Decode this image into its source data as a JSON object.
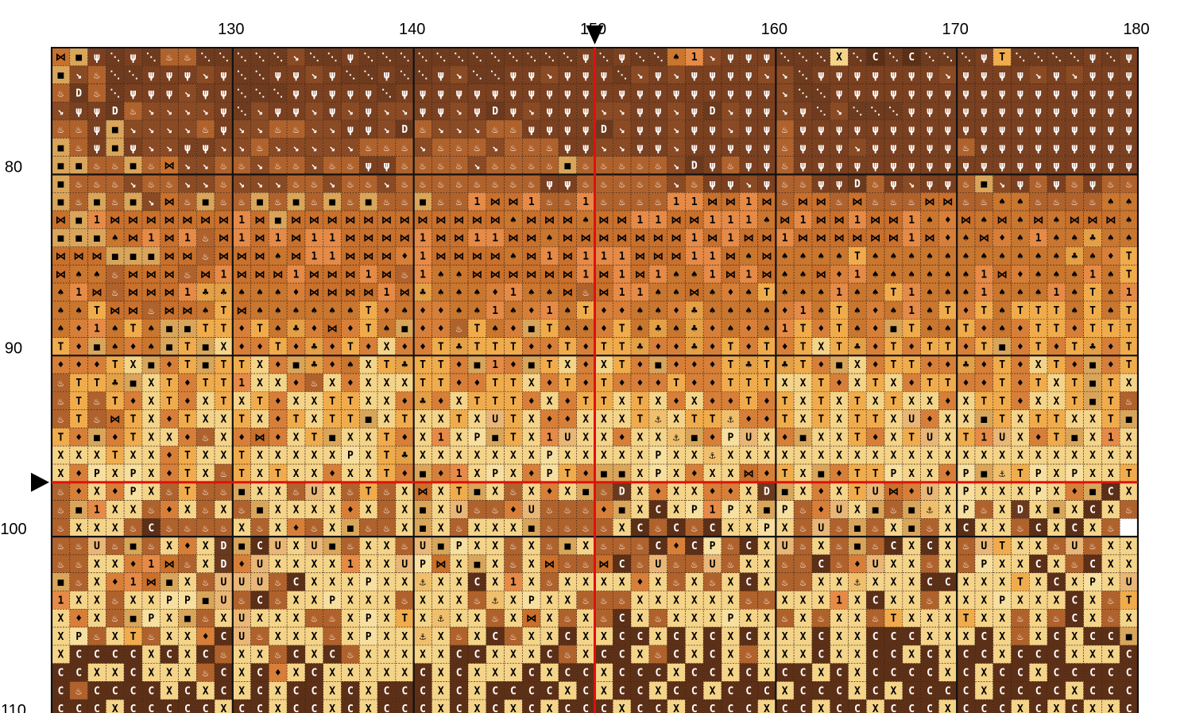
{
  "column_labels": [
    130,
    140,
    150,
    160,
    170,
    180
  ],
  "row_labels": [
    80,
    90,
    100,
    110
  ],
  "key": {
    "a": {
      "symbol": "⋱",
      "color": "#6e3b1f",
      "ink": "#ffffff"
    },
    "b": {
      "symbol": "ψ",
      "color": "#7a4020",
      "ink": "#ffffff"
    },
    "c": {
      "symbol": "↘",
      "color": "#8a4a24",
      "ink": "#ffffff"
    },
    "d": {
      "symbol": "♨",
      "color": "#b0622c",
      "ink": "#ffffff"
    },
    "e": {
      "symbol": "1",
      "color": "#e58a47",
      "ink": "#000000"
    },
    "f": {
      "symbol": "♦",
      "color": "#d77f38",
      "ink": "#000000"
    },
    "g": {
      "symbol": "♠",
      "color": "#c9762f",
      "ink": "#000000"
    },
    "h": {
      "symbol": "T",
      "color": "#f0ac4c",
      "ink": "#000000"
    },
    "i": {
      "symbol": "♣",
      "color": "#e3a046",
      "ink": "#000000"
    },
    "j": {
      "symbol": "X",
      "color": "#f4d489",
      "ink": "#000000"
    },
    "k": {
      "symbol": "C",
      "color": "#5c2f17",
      "ink": "#ffffff"
    },
    "l": {
      "symbol": "⚓",
      "color": "#efbf6d",
      "ink": "#000000"
    },
    "m": {
      "symbol": "■",
      "color": "#d8a55a",
      "ink": "#000000"
    },
    "n": {
      "symbol": "P",
      "color": "#f7df9f",
      "ink": "#000000"
    },
    "o": {
      "symbol": "U",
      "color": "#e8b676",
      "ink": "#000000"
    },
    "p": {
      "symbol": "D",
      "color": "#6b3a1e",
      "ink": "#ffffff"
    },
    "q": {
      "symbol": "⋈",
      "color": "#c8702c",
      "ink": "#000000"
    }
  },
  "rows": [
    "qmbabaddaaaaacaabaaaaaaaaaaaababaagecbbbaaajakakaaabhaaaabab",
    "mcdaabbbcbaabbcbaabaabcaabbcbbbacbcbbbbccabbbbbbbcbbbbcbcbbb",
    "dpdabbbcbbaaabbbbbabbbbbbbbbbbbbbbbbbbbbcaabbbbbbbbbbbbbbbbb",
    "cbbpdccccbacbbcbcbccbbcbpbcbbbccbbcbpcbbcbacaaabbbbbbbbbbbbb",
    "ddbmccccdbccddccbbcpdcccddbbbbpcbbcbbcbbdbbbbbbbbbbbbbbbbbbb",
    "mdbmbccbbccdcccccdddcdddcdddbbccbbcbbbbbdbbbcbbbbbdbbbbbbbbb",
    "mmddmdqccddcddcddbbddddcddddmdddddcpbdbbdbbbbbbbbbbbbbbbbbbb",
    "mdddcddccdcccddcddcddddddddbbdddddcdbbcbddbbpdbcbbdmcbdbdbdd",
    "mdmdmcqdmddmdmdmdmddmddeqqeddeddddeeqqeqdqqdqdddqqddggddddgg",
    "qmeqqqqqqqeqmqqqqqqqqqqqqgqqqgqqeeqqeeegqeqqeqqegfqgqgqgqqqg",
    "mmmgqeqedqeqeqeeqqqqeqqeeqqgqqqqqqqeqeqqeqqqqqqeqfgqfgeggigg",
    "qqqmmmqqdqqqgqeeqqqfeqqqqgqeqeeeqqqeeqgqgggghgggggggggggigfhf",
    "qggdqqqdqeqqqeqqqeqdeggqqqqqqeqeqeggeqeqggqfeggggggeqfgggeghe",
    "geqdqqqeiigggfqqqqeqigggfeggqdqeeggqgfghgggegghegggegggeghgeh",
    "gghqqdqqghqgggggghfgffggegfeghffggfiggggfeghgfgeghfhghhhghgh",
    "gfeghgmmhhfhgifqfhgmffdhgfmhggfhgigifgfgehfhgfmhgghfgfhhfhhh",
    "hfmgfgmhmjffhfifhfjffhihhhffhfhhiffifhfhfhjhifhfhhfhmfhfhifh",
    "fffhjmfhmhhjfmifgjhihhfmefmhjfjhfmfffhihihfmjfhhffifhfjhfmfh",
    "dhhimjhfhhejjfdjfjjjhhffhhjfhfhfffhffhhhjjhfjhjfhhffhfhjhmhj",
    "dhdhfjhfjhjhfjjhhjjfifjhhhfjfhhjhjfjffhfhjhjhjhjjfjhhfjjhmhd",
    "dhdqhjfhjjhjfhjhhmjhjjhjohjffjjjhljhhlffhjhjhhjofjjmhjhhjjhm",
    "hfmfhjjfdjfqfjhmjjhfjejnmhjeojjfjjlmfnojfmjjhfjhojheojfhmjej",
    "jjjhjjfhjjhjjjjjnjhijjjjjjjnjjjjjnjjljjjjjjjjjjjjjjjjjjjjjjjjj",
    "jfnjnjfhjdhjhjjfjjhfmfejnjfnhfmmjnjfjjqfhjmfhhnjjfnmlhnjnjjh",
    "dfjfnjdhddmjjdojdhdjqjhmjdjfjmdpjfjjffjpmjfjhoqfojnjjjnjfmkj",
    "dmejjdfjdjdmjjjjfjdjmjoddfodddfmjkjnenjmndfojmdmljndjpjmjkjd",
    "djjjdkddddjdjfdjmddjmjdjjjmddddjkdkdkjjnjdodmdjmdjkjjdkjkjd",
    "ddodmdjfjpmkojomdjjdomnjjdjdmjdddkfkndkjodjdmdkjkjdohjjdodjj",
    "ddjjfeqdjpfojjjjejjonqjmjdjqddqkdoddodjjddkdfojjdjdnjjkjdkjj",
    "mdjfeqmjdooodkjjjnjjljjkjejdjjjjfjdjdjkjddjjljjjkkjjjhjkjnjo",
    "ejjdjjnnmodkdjjnjjjdjjjdljnjjdddjjjjjjddjjjejkjjdjjjnjjjkjdh",
    "jfjdmnjmdjojjjddjnjhjljjdjqjdjdkjdjjjnjjdjdjjdhjjjhjjdjdkjdj",
    "jndjhdjjfkodjjjdjnjjljdjkdjjkjjkkjkjkjkjjjkjjkkkjjjkjdjkjkkm",
    "jkkkkjkjkdjjdkjkdjjjjjkkjjjkdjkkjdkjkjdjjjkjjkkjkjkkjkkkjjjk",
    "kkjjkjjjdkjkfjkjjjjjkjkjjjkjkkjkkkjkkjkjkkjkjkkkkjkjkkjkkkkk",
    "kdkkkkjkjkjkjkkjkjkkkjkjkkkkjkjkkjkkjkkkjkkkjkjkkkkjkkkkjkkk",
    "kkkjkkkkkjkkjkkjkjkkkjkjkjkjkkkjkkjkkkkjkkjkkjkkkjkkkjkjkjjk"
  ]
}
